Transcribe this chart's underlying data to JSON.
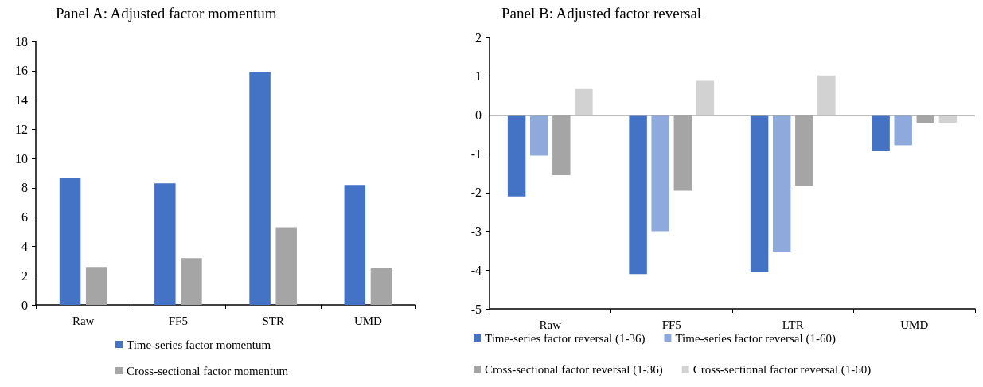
{
  "chart_data": [
    {
      "type": "bar",
      "title": "Panel A: Adjusted factor momentum",
      "categories": [
        "Raw",
        "FF5",
        "STR",
        "UMD"
      ],
      "series": [
        {
          "name": "Time-series factor momentum",
          "color": "#4472c4",
          "values": [
            8.65,
            8.3,
            15.9,
            8.2
          ]
        },
        {
          "name": "Cross-sectional factor momentum",
          "color": "#a5a5a5",
          "values": [
            2.6,
            3.2,
            5.3,
            2.5
          ]
        }
      ],
      "ylim": [
        0,
        18
      ],
      "yticks": [
        0,
        2,
        4,
        6,
        8,
        10,
        12,
        14,
        16,
        18
      ],
      "grid": false,
      "legend": "bottom"
    },
    {
      "type": "bar",
      "title": "Panel B: Adjusted factor reversal",
      "categories": [
        "Raw",
        "FF5",
        "LTR",
        "UMD"
      ],
      "series": [
        {
          "name": "Time-series factor reversal (1-36)",
          "color": "#4472c4",
          "values": [
            -2.1,
            -4.1,
            -4.05,
            -0.92
          ]
        },
        {
          "name": "Time-series factor reversal (1-60)",
          "color": "#8eaadc",
          "values": [
            -1.05,
            -3.0,
            -3.52,
            -0.78
          ]
        },
        {
          "name": "Cross-sectional factor reversal (1-36)",
          "color": "#a5a5a5",
          "values": [
            -1.55,
            -1.95,
            -1.82,
            -0.2
          ]
        },
        {
          "name": "Cross-sectional factor reversal (1-60)",
          "color": "#d2d2d2",
          "values": [
            0.67,
            0.88,
            1.02,
            -0.2
          ]
        }
      ],
      "ylim": [
        -5,
        2
      ],
      "yticks": [
        -5,
        -4,
        -3,
        -2,
        -1,
        0,
        1,
        2
      ],
      "grid": false,
      "legend": "bottom",
      "ref_lines": [
        {
          "axis": "y",
          "value": 0,
          "color": "#a6a6a6"
        }
      ]
    }
  ]
}
